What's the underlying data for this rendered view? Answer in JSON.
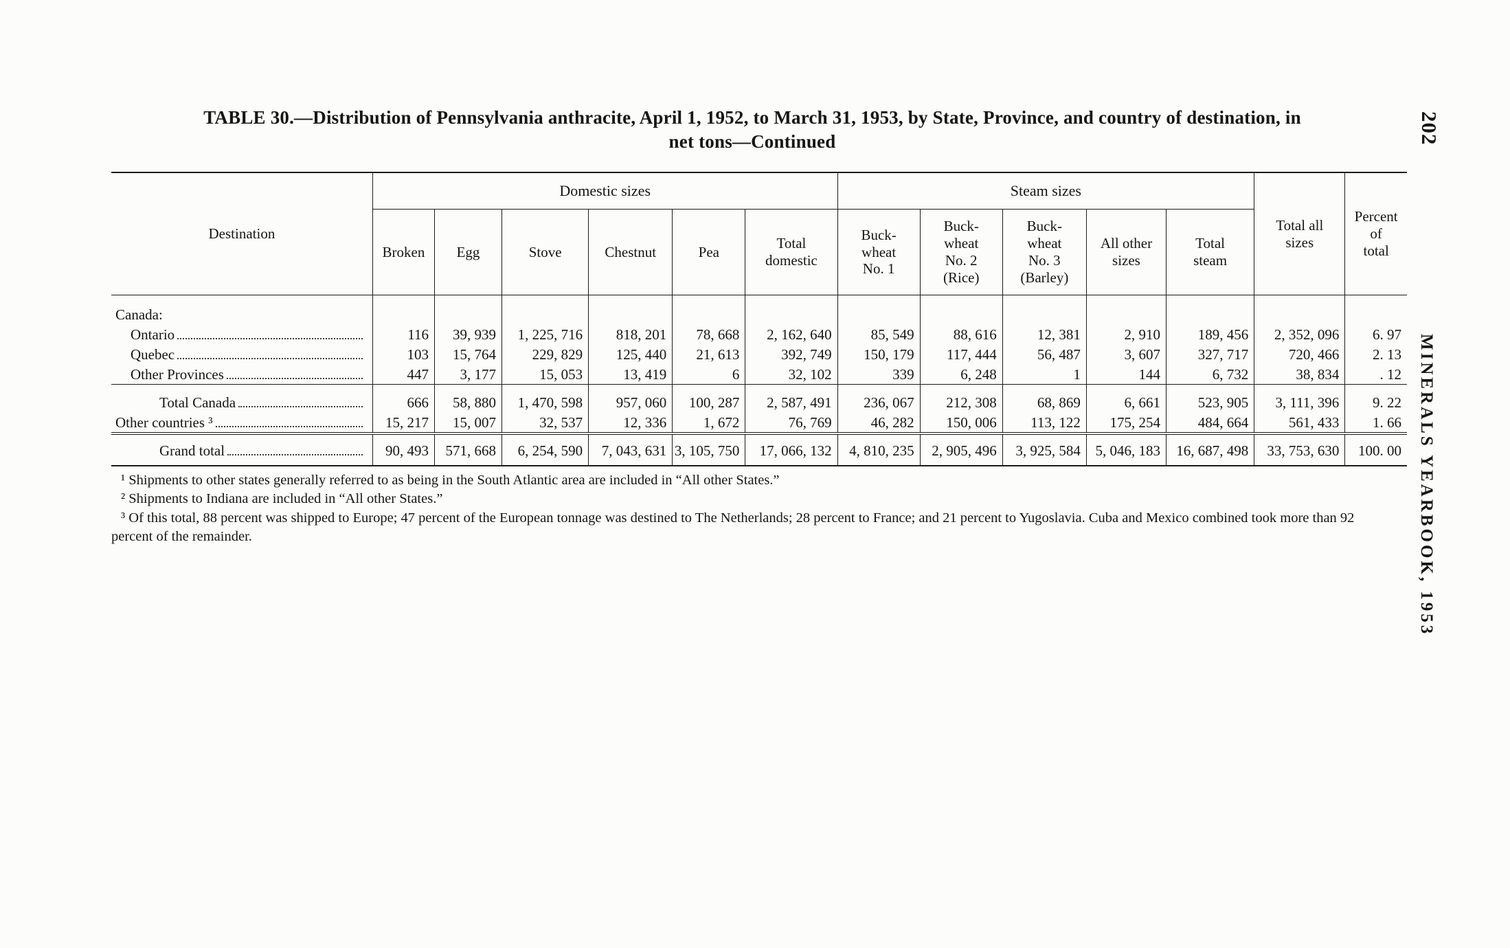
{
  "page": {
    "page_number": "202",
    "side_text": "MINERALS YEARBOOK, 1953",
    "title_line1": "TABLE 30.—Distribution of Pennsylvania anthracite, April 1, 1952, to March 31, 1953, by State, Province, and country of destination, in",
    "title_line2": "net tons—Continued"
  },
  "table": {
    "header": {
      "destination": "Destination",
      "group_domestic": "Domestic sizes",
      "group_steam": "Steam sizes",
      "cols_domestic": [
        "Broken",
        "Egg",
        "Stove",
        "Chestnut",
        "Pea",
        "Total\ndomestic"
      ],
      "cols_steam": [
        "Buck-\nwheat\nNo. 1",
        "Buck-\nwheat\nNo. 2\n(Rice)",
        "Buck-\nwheat\nNo. 3\n(Barley)",
        "All other\nsizes",
        "Total\nsteam"
      ],
      "total_all": "Total all\nsizes",
      "percent": "Percent\nof\ntotal"
    },
    "rows": [
      {
        "label": "Canada:",
        "indent": 0,
        "leaders": false,
        "values": [
          "",
          "",
          "",
          "",
          "",
          "",
          "",
          "",
          "",
          "",
          "",
          "",
          ""
        ]
      },
      {
        "label": "Ontario",
        "indent": 1,
        "leaders": true,
        "values": [
          "116",
          "39, 939",
          "1, 225, 716",
          "818, 201",
          "78, 668",
          "2, 162, 640",
          "85, 549",
          "88, 616",
          "12, 381",
          "2, 910",
          "189, 456",
          "2, 352, 096",
          "6. 97"
        ]
      },
      {
        "label": "Quebec",
        "indent": 1,
        "leaders": true,
        "values": [
          "103",
          "15, 764",
          "229, 829",
          "125, 440",
          "21, 613",
          "392, 749",
          "150, 179",
          "117, 444",
          "56, 487",
          "3, 607",
          "327, 717",
          "720, 466",
          "2. 13"
        ]
      },
      {
        "label": "Other Provinces",
        "indent": 1,
        "leaders": true,
        "rule_after": "single",
        "values": [
          "447",
          "3, 177",
          "15, 053",
          "13, 419",
          "6",
          "32, 102",
          "339",
          "6, 248",
          "1",
          "144",
          "6, 732",
          "38, 834",
          ". 12"
        ]
      },
      {
        "label": "Total Canada",
        "indent": 2,
        "leaders": true,
        "gap_before": 12,
        "values": [
          "666",
          "58, 880",
          "1, 470, 598",
          "957, 060",
          "100, 287",
          "2, 587, 491",
          "236, 067",
          "212, 308",
          "68, 869",
          "6, 661",
          "523, 905",
          "3, 111, 396",
          "9. 22"
        ]
      },
      {
        "label": "Other countries ³",
        "indent": 0,
        "leaders": true,
        "rule_after": "double",
        "values": [
          "15, 217",
          "15, 007",
          "32, 537",
          "12, 336",
          "1, 672",
          "76, 769",
          "46, 282",
          "150, 006",
          "113, 122",
          "175, 254",
          "484, 664",
          "561, 433",
          "1. 66"
        ]
      },
      {
        "label": "Grand total",
        "indent": 2,
        "leaders": true,
        "gap_before": 10,
        "values": [
          "90, 493",
          "571, 668",
          "6, 254, 590",
          "7, 043, 631",
          "3, 105, 750",
          "17, 066, 132",
          "4, 810, 235",
          "2, 905, 496",
          "3, 925, 584",
          "5, 046, 183",
          "16, 687, 498",
          "33, 753, 630",
          "100. 00"
        ]
      }
    ]
  },
  "footnotes": [
    "¹ Shipments to other states generally referred to as being in the South Atlantic area are included in “All other States.”",
    "² Shipments to Indiana are included in “All other States.”",
    "³ Of this total, 88 percent was shipped to Europe; 47 percent of the European tonnage was destined to The Netherlands; 28 percent to France; and 21 percent to Yugoslavia. Cuba and Mexico combined took more than 92 percent of the remainder."
  ]
}
